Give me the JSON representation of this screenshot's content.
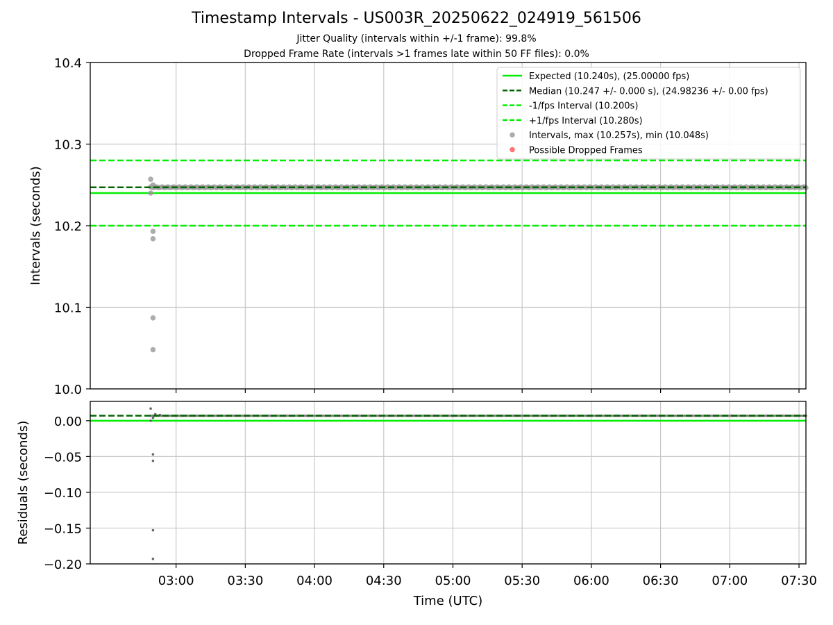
{
  "title": "Timestamp Intervals - US003R_20250622_024919_561506",
  "subtitle_jitter": "Jitter Quality (intervals within +/-1 frame): 99.8%",
  "subtitle_dropped": "Dropped Frame Rate (intervals >1 frames late within 50 FF files): 0.0%",
  "colors": {
    "expected": "#00ee00",
    "median": "#006400",
    "fps_band": "#00ee00",
    "intervals": "#999999",
    "residuals": "#666666",
    "dropped": "#ff5050",
    "grid": "#c8c8c8"
  },
  "chart_data": [
    {
      "type": "scatter",
      "panel": "main",
      "ylabel": "Intervals (seconds)",
      "ylim": [
        10.0,
        10.4
      ],
      "yticks": [
        "10.0",
        "10.1",
        "10.2",
        "10.3",
        "10.4"
      ],
      "xlim_hours": [
        2.38,
        7.55
      ],
      "xticks": [
        "03:00",
        "03:30",
        "04:00",
        "04:30",
        "05:00",
        "05:30",
        "06:00",
        "06:30",
        "07:00",
        "07:30"
      ],
      "grid": true,
      "legend_position": "top-right",
      "legend": [
        {
          "label": "Expected (10.240s), (25.00000 fps)",
          "style": "solid",
          "color_key": "expected"
        },
        {
          "label": "Median (10.247 +/- 0.000 s), (24.98236 +/- 0.00 fps)",
          "style": "dashed",
          "color_key": "median"
        },
        {
          "label": "-1/fps Interval (10.200s)",
          "style": "dashed",
          "color_key": "fps_band"
        },
        {
          "label": "+1/fps Interval (10.280s)",
          "style": "dashed",
          "color_key": "fps_band"
        },
        {
          "label": "Intervals, max (10.257s), min (10.048s)",
          "style": "marker",
          "color_key": "intervals"
        },
        {
          "label": "Possible Dropped Frames",
          "style": "marker",
          "color_key": "dropped"
        }
      ],
      "hlines": {
        "expected": 10.24,
        "median": 10.247,
        "minus_fps": 10.2,
        "plus_fps": 10.28
      },
      "series_main": {
        "x_start": "02:49",
        "x_end": "07:33",
        "y": 10.247
      },
      "outliers": [
        {
          "t": "02:49",
          "y": 10.257
        },
        {
          "t": "02:49",
          "y": 10.24
        },
        {
          "t": "02:50",
          "y": 10.193
        },
        {
          "t": "02:50",
          "y": 10.184
        },
        {
          "t": "02:50",
          "y": 10.087
        },
        {
          "t": "02:50",
          "y": 10.048
        },
        {
          "t": "02:50",
          "y": 10.25
        }
      ]
    },
    {
      "type": "scatter",
      "panel": "residuals",
      "ylabel": "Residuals (seconds)",
      "xlabel": "Time (UTC)",
      "ylim": [
        -0.2,
        0.027
      ],
      "yticks": [
        "0.00",
        "−0.05",
        "−0.10",
        "−0.15",
        "−0.20"
      ],
      "ytick_values": [
        0.0,
        -0.05,
        -0.1,
        -0.15,
        -0.2
      ],
      "xticks": [
        "03:00",
        "03:30",
        "04:00",
        "04:30",
        "05:00",
        "05:30",
        "06:00",
        "06:30",
        "07:00",
        "07:30"
      ],
      "grid": true,
      "hlines": {
        "expected": 0.0,
        "median": 0.007
      },
      "series_main": {
        "x_start": "02:49",
        "x_end": "07:33",
        "y": 0.007
      },
      "outliers": [
        {
          "t": "02:49",
          "y": 0.017
        },
        {
          "t": "02:49",
          "y": 0.0
        },
        {
          "t": "02:50",
          "y": 0.004
        },
        {
          "t": "02:50",
          "y": -0.047
        },
        {
          "t": "02:50",
          "y": -0.056
        },
        {
          "t": "02:50",
          "y": -0.153
        },
        {
          "t": "02:50",
          "y": -0.193
        },
        {
          "t": "02:51",
          "y": 0.009
        },
        {
          "t": "02:53",
          "y": 0.008
        }
      ]
    }
  ]
}
